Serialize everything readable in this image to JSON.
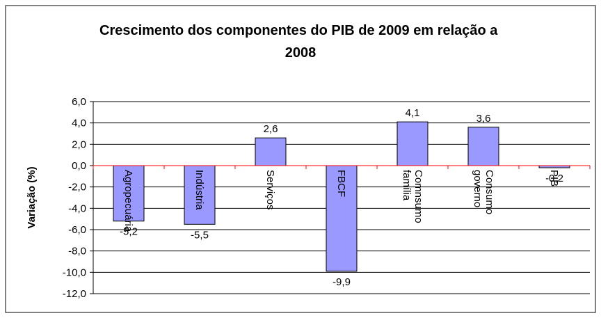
{
  "chart_data": {
    "type": "bar",
    "title": "Crescimento dos componentes do PIB de 2009 em relação a 2008",
    "y_label": "Variação (%)",
    "categories": [
      "Agropecuária",
      "Indústria",
      "Serviços",
      "FBCF",
      "Comnsumo família",
      "Consumo governo",
      "PIB"
    ],
    "values": [
      -5.2,
      -5.5,
      2.6,
      -9.9,
      4.1,
      3.6,
      -0.2
    ],
    "value_labels": [
      "-5,2",
      "-5,5",
      "2,6",
      "-9,9",
      "4,1",
      "3,6",
      "-0,2"
    ],
    "color": "#9999ff",
    "ylim": [
      -12,
      6
    ],
    "yticks": [
      {
        "value": -12,
        "label": "-12,0"
      },
      {
        "value": -10,
        "label": "-10,0"
      },
      {
        "value": -8,
        "label": "-8,0"
      },
      {
        "value": -6,
        "label": "-6,0"
      },
      {
        "value": -4,
        "label": "-4,0"
      },
      {
        "value": -2,
        "label": "-2,0"
      },
      {
        "value": 0,
        "label": "0,0"
      },
      {
        "value": 2,
        "label": "2,0"
      },
      {
        "value": 4,
        "label": "4,0"
      },
      {
        "value": 6,
        "label": "6,0"
      }
    ],
    "grid": true
  }
}
